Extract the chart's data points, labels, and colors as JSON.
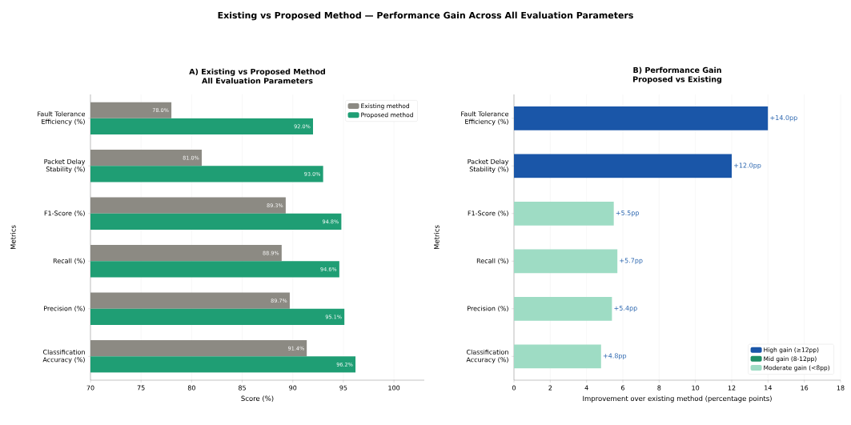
{
  "chart_data": [
    {
      "type": "other",
      "title": "Existing vs Proposed Method — Performance Gain Across All Evaluation Parameters"
    },
    {
      "type": "bar",
      "orientation": "horizontal",
      "title": "A) Existing vs Proposed Method",
      "subtitle": "All Evaluation Parameters",
      "xlabel": "Score (%)",
      "ylabel": "Metrics",
      "categories": [
        "Fault Tolerance Efficiency (%)",
        "Packet Delay Stability (%)",
        "F1-Score (%)",
        "Recall (%)",
        "Precision (%)",
        "Classification Accuracy (%)"
      ],
      "series": [
        {
          "name": "Existing method",
          "color": "#8c8a83",
          "values": [
            78.0,
            81.0,
            89.3,
            88.9,
            89.7,
            91.4
          ],
          "value_labels": [
            "78.0%",
            "81.0%",
            "89.3%",
            "88.9%",
            "89.7%",
            "91.4%"
          ]
        },
        {
          "name": "Proposed method",
          "color": "#1f9e74",
          "values": [
            92.0,
            93.0,
            94.8,
            94.6,
            95.1,
            96.2
          ],
          "value_labels": [
            "92.0%",
            "93.0%",
            "94.8%",
            "94.6%",
            "95.1%",
            "96.2%"
          ]
        }
      ],
      "xlim": [
        70,
        103
      ],
      "xticks": [
        70,
        75,
        80,
        85,
        90,
        95,
        100
      ],
      "grid": "x",
      "legend": "top right"
    },
    {
      "type": "bar",
      "orientation": "horizontal",
      "title": "B) Performance Gain",
      "subtitle": "Proposed vs Existing",
      "xlabel": "Improvement over existing method (percentage points)",
      "ylabel": "Metrics",
      "categories": [
        "Fault Tolerance Efficiency (%)",
        "Packet Delay Stability (%)",
        "F1-Score (%)",
        "Recall (%)",
        "Precision (%)",
        "Classification Accuracy (%)"
      ],
      "series": [
        {
          "name": "High gain (≥12pp)",
          "color": "#1a56a8",
          "values": [
            14.0,
            12.0,
            null,
            null,
            null,
            null
          ],
          "value_labels": [
            "+14.0pp",
            "+12.0pp",
            null,
            null,
            null,
            null
          ]
        },
        {
          "name": "Mid gain (8-12pp)",
          "color": "#1f8f66",
          "values": [
            null,
            null,
            null,
            null,
            null,
            null
          ]
        },
        {
          "name": "Moderate gain (<8pp)",
          "color": "#9edcc4",
          "values": [
            null,
            null,
            5.5,
            5.7,
            5.4,
            4.8
          ],
          "value_labels": [
            null,
            null,
            "+5.5pp",
            "+5.7pp",
            "+5.4pp",
            "+4.8pp"
          ]
        }
      ],
      "xlim": [
        0,
        18
      ],
      "xticks": [
        0,
        2,
        4,
        6,
        8,
        10,
        12,
        14,
        16,
        18
      ],
      "grid": "x",
      "legend": "bottom right"
    }
  ]
}
